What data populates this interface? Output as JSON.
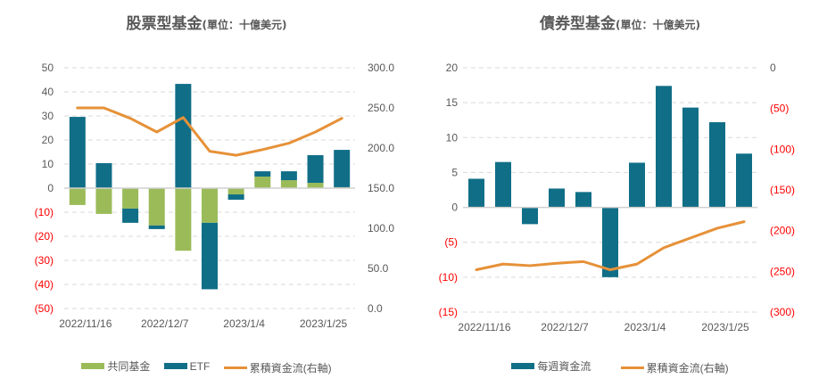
{
  "chart_data": [
    {
      "type": "bar",
      "stacked": true,
      "title": "股票型基金",
      "unit_label": "(單位：十億美元)",
      "x": [
        "2022/11/16",
        "2022/11/23",
        "2022/11/30",
        "2022/12/7",
        "2022/12/14",
        "2022/12/21",
        "2023/1/4",
        "2023/1/11",
        "2023/1/18",
        "2023/1/25",
        "2023/2/1"
      ],
      "x_tick_labels": [
        "2022/11/16",
        "2022/12/7",
        "2023/1/4",
        "2023/1/25"
      ],
      "series": [
        {
          "name": "共同基金",
          "kind": "bar",
          "axis": "left",
          "color": "#9bbb59",
          "values": [
            -7.0,
            -10.7,
            -8.5,
            -15.5,
            -26.0,
            -14.4,
            -2.6,
            4.8,
            3.3,
            2.2,
            0.4
          ]
        },
        {
          "name": "ETF",
          "kind": "bar",
          "axis": "left",
          "color": "#106e87",
          "values": [
            29.6,
            10.4,
            -5.9,
            -1.5,
            43.3,
            -27.6,
            -2.2,
            2.2,
            3.7,
            11.5,
            15.5
          ]
        },
        {
          "name": "累積資金流(右軸)",
          "kind": "line",
          "axis": "right",
          "color": "#e69138",
          "values": [
            250,
            250,
            237,
            220,
            238,
            196,
            191,
            198,
            206,
            220,
            237
          ]
        }
      ],
      "ylim": [
        -50,
        50
      ],
      "y_ticks": [
        50,
        40,
        30,
        20,
        10,
        0,
        -10,
        -20,
        -30,
        -40,
        -50
      ],
      "y_tick_labels": [
        "50",
        "40",
        "30",
        "20",
        "10",
        "0",
        "(10)",
        "(20)",
        "(30)",
        "(40)",
        "(50)"
      ],
      "y2lim": [
        0,
        300
      ],
      "y2_ticks": [
        300,
        250,
        200,
        150,
        100,
        50,
        0
      ],
      "y2_tick_labels": [
        "300.0",
        "250.0",
        "200.0",
        "150.0",
        "100.0",
        "50.0",
        "0.0"
      ],
      "grid": true,
      "legend_position": "bottom"
    },
    {
      "type": "bar",
      "stacked": false,
      "title": "債券型基金",
      "unit_label": "(單位：十億美元)",
      "x": [
        "2022/11/16",
        "2022/11/23",
        "2022/11/30",
        "2022/12/7",
        "2022/12/14",
        "2022/12/21",
        "2023/1/4",
        "2023/1/11",
        "2023/1/18",
        "2023/1/25",
        "2023/2/1"
      ],
      "x_tick_labels": [
        "2022/11/16",
        "2022/12/7",
        "2023/1/4",
        "2023/1/25"
      ],
      "series": [
        {
          "name": "每週資金流",
          "kind": "bar",
          "axis": "left",
          "color": "#106e87",
          "values": [
            4.1,
            6.5,
            -2.4,
            2.7,
            2.2,
            -10.0,
            6.4,
            17.4,
            14.3,
            12.2,
            7.7
          ]
        },
        {
          "name": "累積資金流(右軸)",
          "kind": "line",
          "axis": "right",
          "color": "#e69138",
          "values": [
            -248,
            -241,
            -243,
            -240,
            -238,
            -248,
            -241,
            -221,
            -209,
            -197,
            -189
          ]
        }
      ],
      "ylim": [
        -15,
        20
      ],
      "y_ticks": [
        20,
        15,
        10,
        5,
        0,
        -5,
        -10,
        -15
      ],
      "y_tick_labels": [
        "20",
        "15",
        "10",
        "5",
        "0",
        "(5)",
        "(10)",
        "(15)"
      ],
      "y2lim": [
        -300,
        0
      ],
      "y2_ticks": [
        0,
        -50,
        -100,
        -150,
        -200,
        -250,
        -300
      ],
      "y2_tick_labels": [
        "0",
        "(50)",
        "(100)",
        "(150)",
        "(200)",
        "(250)",
        "(300)"
      ],
      "grid": true,
      "legend_position": "bottom"
    }
  ],
  "colors": {
    "negative_tick": "#ff0000",
    "tick": "#595959",
    "grid": "#d9d9d9",
    "zero_line": "#d0d0d0"
  }
}
